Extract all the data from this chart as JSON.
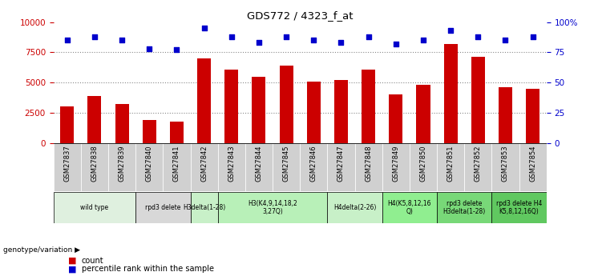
{
  "title": "GDS772 / 4323_f_at",
  "categories": [
    "GSM27837",
    "GSM27838",
    "GSM27839",
    "GSM27840",
    "GSM27841",
    "GSM27842",
    "GSM27843",
    "GSM27844",
    "GSM27845",
    "GSM27846",
    "GSM27847",
    "GSM27848",
    "GSM27849",
    "GSM27850",
    "GSM27851",
    "GSM27852",
    "GSM27853",
    "GSM27854"
  ],
  "counts": [
    3000,
    3900,
    3200,
    1900,
    1800,
    7000,
    6100,
    5500,
    6400,
    5100,
    5200,
    6100,
    4000,
    4800,
    8200,
    7100,
    4600,
    4500
  ],
  "percentiles": [
    85,
    88,
    85,
    78,
    77,
    95,
    88,
    83,
    88,
    85,
    83,
    88,
    82,
    85,
    93,
    88,
    85,
    88
  ],
  "bar_color": "#cc0000",
  "dot_color": "#0000cc",
  "ylim_left": [
    0,
    10000
  ],
  "ylim_right": [
    0,
    100
  ],
  "yticks_left": [
    0,
    2500,
    5000,
    7500,
    10000
  ],
  "yticks_right": [
    0,
    25,
    50,
    75,
    100
  ],
  "yticklabels_right": [
    "0",
    "25",
    "50",
    "75",
    "100%"
  ],
  "genotype_groups": [
    {
      "label": "wild type",
      "start": 0,
      "end": 3,
      "color": "#dff0df"
    },
    {
      "label": "rpd3 delete",
      "start": 3,
      "end": 5,
      "color": "#d8d8d8"
    },
    {
      "label": "H3delta(1-28)",
      "start": 5,
      "end": 6,
      "color": "#c8f0c8"
    },
    {
      "label": "H3(K4,9,14,18,2\n3,27Q)",
      "start": 6,
      "end": 10,
      "color": "#b8f0b8"
    },
    {
      "label": "H4delta(2-26)",
      "start": 10,
      "end": 12,
      "color": "#c8f0c8"
    },
    {
      "label": "H4(K5,8,12,16\nQ)",
      "start": 12,
      "end": 14,
      "color": "#90ee90"
    },
    {
      "label": "rpd3 delete\nH3delta(1-28)",
      "start": 14,
      "end": 16,
      "color": "#78d878"
    },
    {
      "label": "rpd3 delete H4\nK5,8,12,16Q)",
      "start": 16,
      "end": 18,
      "color": "#60c860"
    }
  ],
  "genotype_label": "genotype/variation",
  "background_color": "#ffffff",
  "plot_bg_color": "#ffffff",
  "sample_row_color": "#d0d0d0",
  "grid_color": "#888888",
  "tick_color_left": "#cc0000",
  "tick_color_right": "#0000cc"
}
